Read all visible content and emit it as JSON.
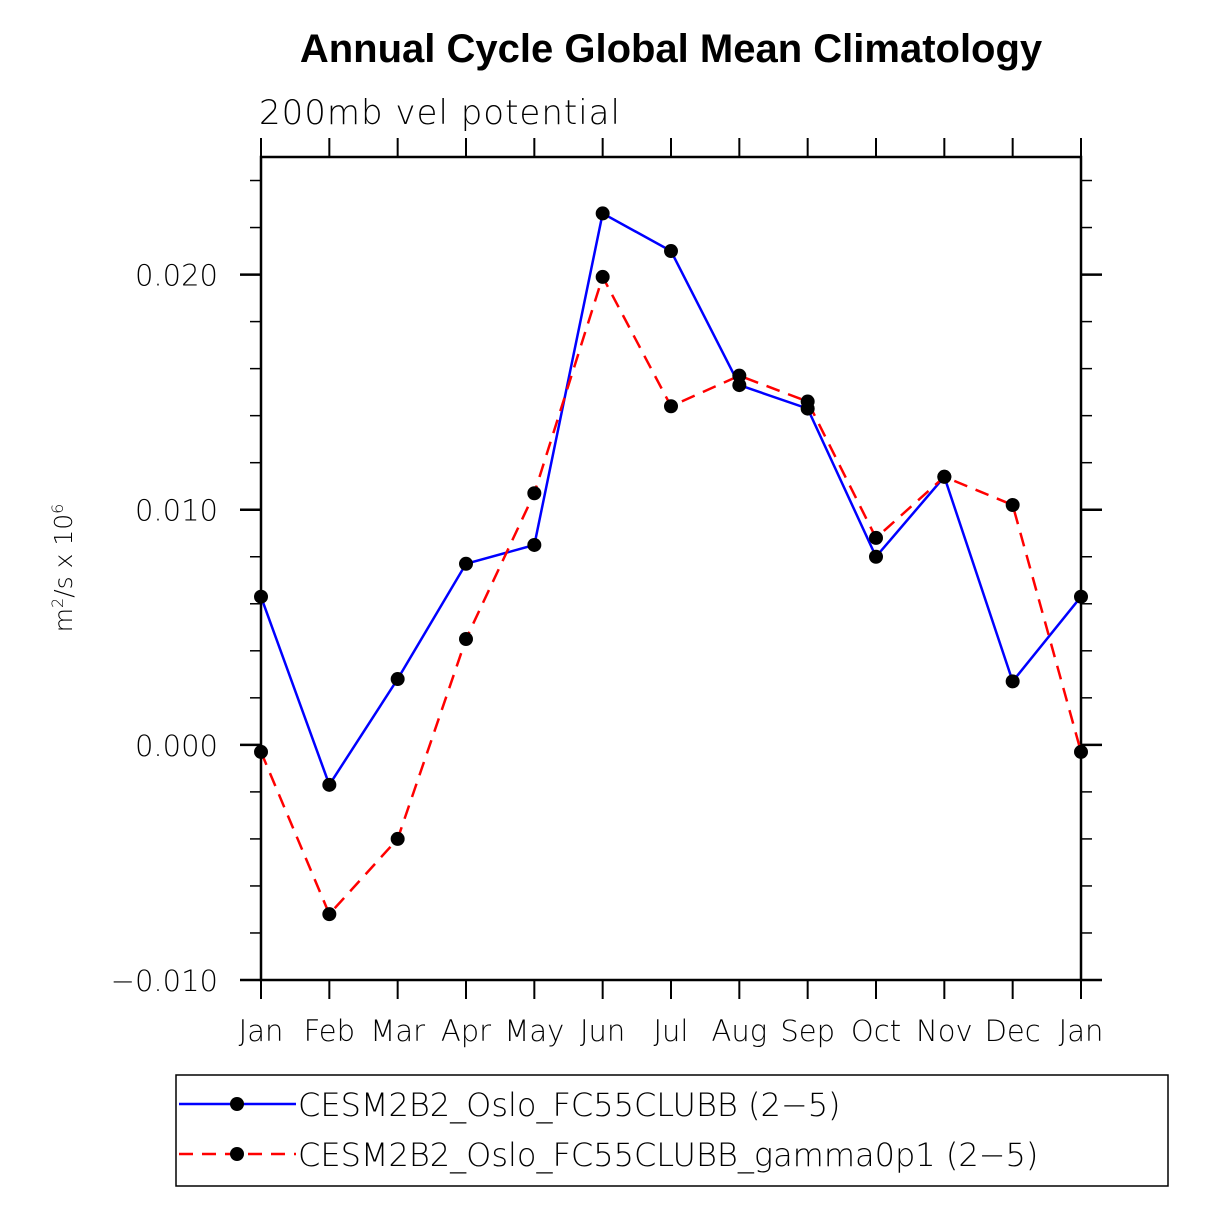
{
  "chart_data": {
    "type": "line",
    "title": "Annual Cycle Global Mean Climatology",
    "subtitle": "200mb vel potential",
    "xlabel": "",
    "ylabel": "m²/s x 10⁶",
    "ylabel_parts": {
      "base": "m",
      "sup1": "2",
      "mid": "/s x 10",
      "sup2": "6"
    },
    "categories": [
      "Jan",
      "Feb",
      "Mar",
      "Apr",
      "May",
      "Jun",
      "Jul",
      "Aug",
      "Sep",
      "Oct",
      "Nov",
      "Dec",
      "Jan"
    ],
    "ylim": [
      -0.01,
      0.025
    ],
    "yticks": [
      -0.01,
      0.0,
      0.01,
      0.02
    ],
    "ytick_labels": [
      "−0.010",
      "0.000",
      "0.010",
      "0.020"
    ],
    "yminor_step": 0.002,
    "grid": false,
    "legend_position": "bottom",
    "series": [
      {
        "name": "CESM2B2_Oslo_FC55CLUBB (2−5)",
        "color": "#0000ff",
        "dash": "solid",
        "marker": "filled-circle",
        "values": [
          0.0063,
          -0.0017,
          0.0028,
          0.0077,
          0.0085,
          0.0226,
          0.021,
          0.0153,
          0.0143,
          0.008,
          0.0114,
          0.0027,
          0.0063
        ]
      },
      {
        "name": "CESM2B2_Oslo_FC55CLUBB_gamma0p1 (2−5)",
        "color": "#ff0000",
        "dash": "dashed",
        "marker": "filled-circle",
        "values": [
          -0.0003,
          -0.0072,
          -0.004,
          0.0045,
          0.0107,
          0.0199,
          0.0144,
          0.0157,
          0.0146,
          0.0088,
          0.0114,
          0.0102,
          -0.0003
        ]
      }
    ]
  }
}
